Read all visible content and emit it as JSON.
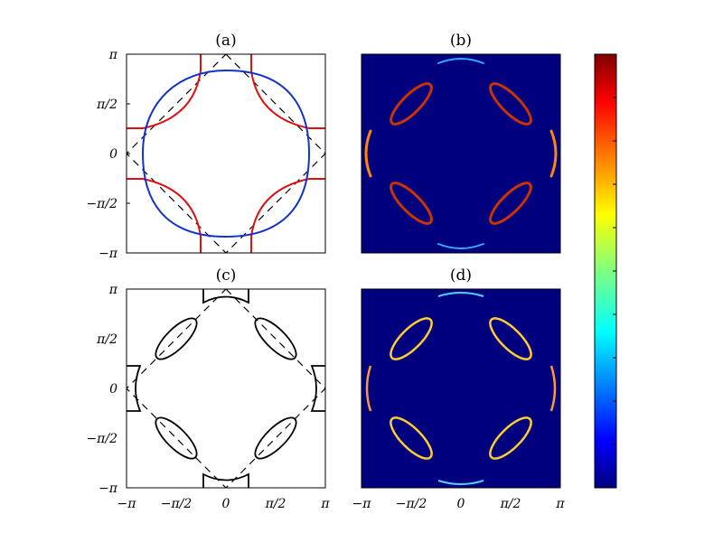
{
  "chart_data": [
    {
      "panel": "(a)",
      "type": "line",
      "title": "(a)",
      "xlim": [
        "-π",
        "π"
      ],
      "ylim": [
        "-π",
        "π"
      ],
      "yticklabels": [
        "π",
        "π/2",
        "0",
        "−π/2",
        "−π"
      ],
      "xticklabels": [],
      "background": "#ffffff",
      "series": [
        {
          "style": "dashed",
          "color": "#000000",
          "shape": "diamond |kx|+|ky|=π"
        },
        {
          "style": "solid",
          "color": "#dd1111",
          "shape": "four corner arcs meeting lines at |k|≈π/3"
        },
        {
          "style": "solid",
          "color": "#1133cc",
          "shape": "rounded square contour, radius≈2.05"
        }
      ]
    },
    {
      "panel": "(b)",
      "type": "heatmap",
      "title": "(b)",
      "background": "#00007f",
      "xticklabels": [],
      "yticklabels": []
    },
    {
      "panel": "(c)",
      "type": "line",
      "title": "(c)",
      "xlim": [
        "-π",
        "π"
      ],
      "ylim": [
        "-π",
        "π"
      ],
      "xticklabels": [
        "−π",
        "−π/2",
        "0",
        "π/2",
        "π"
      ],
      "yticklabels": [
        "π",
        "π/2",
        "0",
        "−π/2",
        "−π"
      ],
      "series": [
        {
          "style": "dashed",
          "color": "#000000",
          "shape": "diamond |kx|+|ky|=π"
        },
        {
          "style": "solid",
          "color": "#000000",
          "shape": "four diagonal pockets plus edge pockets"
        }
      ]
    },
    {
      "panel": "(d)",
      "type": "heatmap",
      "title": "(d)",
      "background": "#00007f",
      "xticklabels": [
        "−π",
        "−π/2",
        "0",
        "π/2",
        "π"
      ],
      "yticklabels": []
    }
  ],
  "colorbar": {
    "colormap": "jet",
    "stops": [
      "#00007f",
      "#0000ff",
      "#007fff",
      "#00ffff",
      "#7fff7f",
      "#ffff00",
      "#ff7f00",
      "#ff0000",
      "#7f0000"
    ],
    "tick_count": 11
  }
}
